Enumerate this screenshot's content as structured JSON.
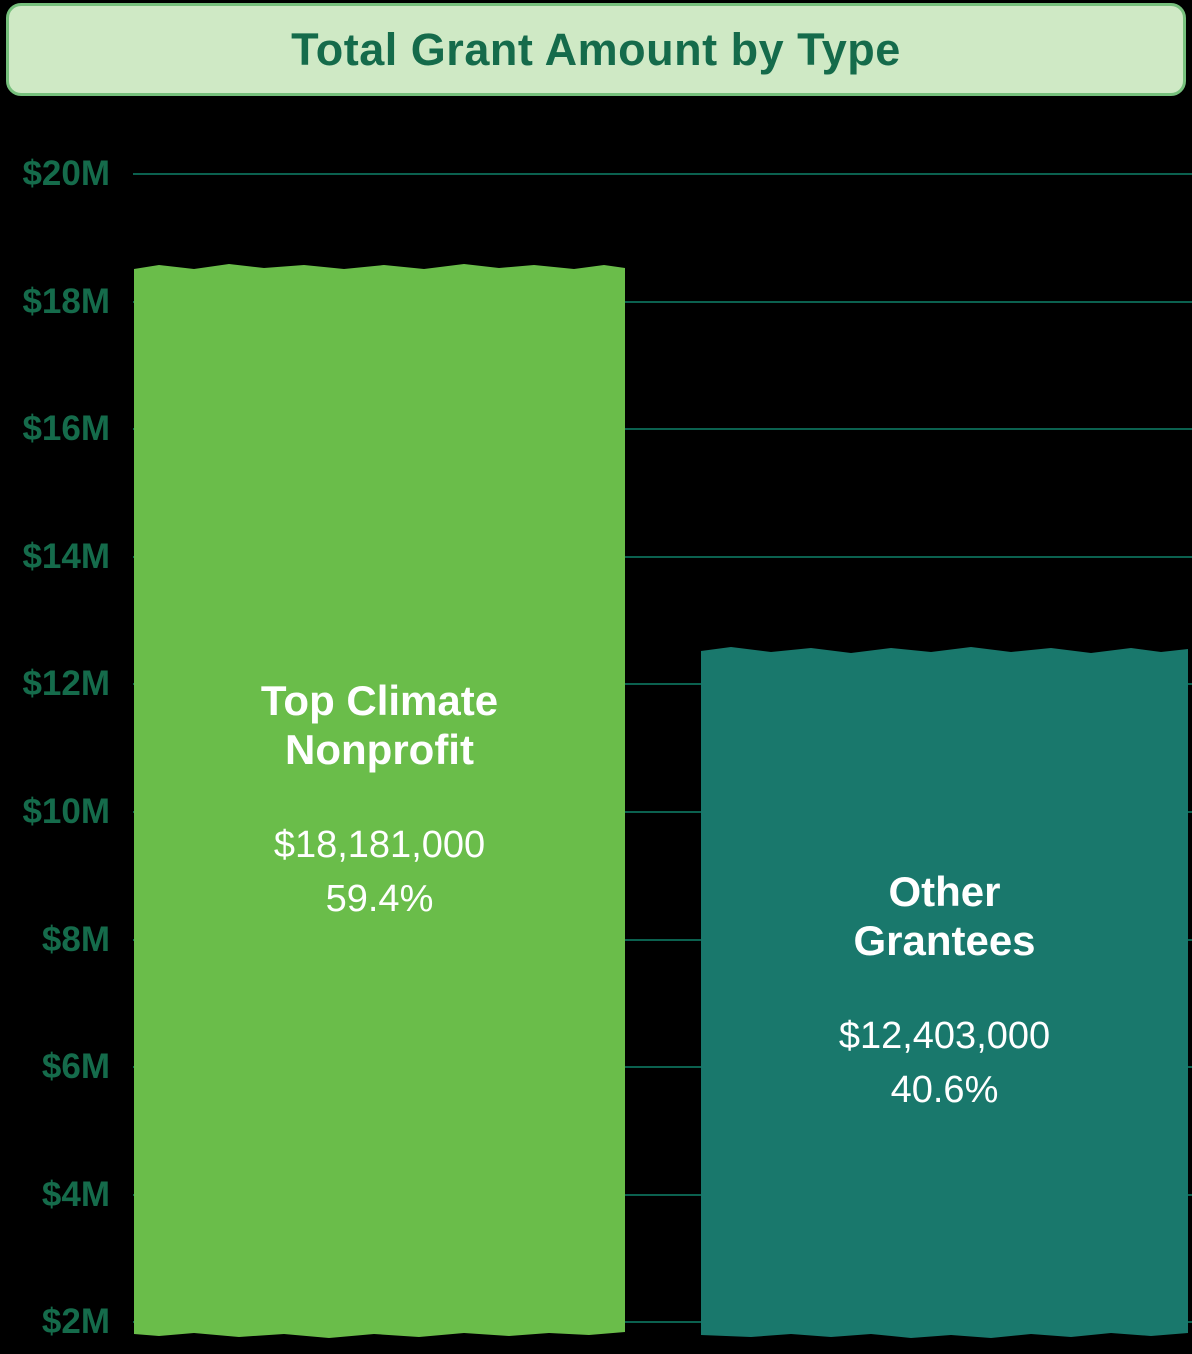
{
  "title": "Total Grant Amount by Type",
  "y_axis": {
    "ticks": [
      "$20M",
      "$18M",
      "$16M",
      "$14M",
      "$12M",
      "$10M",
      "$8M",
      "$6M",
      "$4M",
      "$2M"
    ]
  },
  "bars": [
    {
      "label_lines": [
        "Top Climate",
        "Nonprofit"
      ],
      "amount": "$18,181,000",
      "percent": "59.4%"
    },
    {
      "label_lines": [
        "Other",
        "Grantees"
      ],
      "amount": "$12,403,000",
      "percent": "40.6%"
    }
  ],
  "colors": {
    "background": "#000000",
    "banner_fill": "#cfe9c5",
    "banner_border": "#76c07c",
    "heading_text": "#156b4b",
    "gridline": "#0b614f",
    "bar_green": "#6abd4a",
    "bar_teal": "#19786c",
    "bar_text": "#ffffff"
  },
  "chart_data": {
    "type": "bar",
    "title": "Total Grant Amount by Type",
    "categories": [
      "Top Climate Nonprofit",
      "Other Grantees"
    ],
    "values": [
      18181000,
      12403000
    ],
    "value_labels": [
      "$18,181,000",
      "$12,403,000"
    ],
    "percent_labels": [
      "59.4%",
      "40.6%"
    ],
    "series": [
      {
        "name": "Total Grant Amount",
        "values": [
          18181000,
          12403000
        ]
      }
    ],
    "xlabel": "",
    "ylabel": "",
    "ytick_labels": [
      "$20M",
      "$18M",
      "$16M",
      "$14M",
      "$12M",
      "$10M",
      "$8M",
      "$6M",
      "$4M",
      "$2M"
    ],
    "ytick_values": [
      20000000,
      18000000,
      16000000,
      14000000,
      12000000,
      10000000,
      8000000,
      6000000,
      4000000,
      2000000
    ],
    "ylim": [
      1800000,
      20700000
    ],
    "grid": true,
    "legend": false,
    "bar_colors": [
      "#6abd4a",
      "#19786c"
    ],
    "annotations": "value and percent labels rendered in white inside each bar; hand-drawn xkcd-style wobbly bar edges; black background"
  }
}
